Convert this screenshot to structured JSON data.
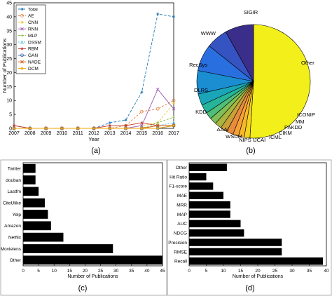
{
  "panels": {
    "a": "(a)",
    "b": "(b)",
    "c": "(c)",
    "d": "(d)"
  },
  "chart_data": [
    {
      "id": "a",
      "type": "line",
      "ylabel": "Number of Publications",
      "xlabel": "Year",
      "x": [
        2007,
        2008,
        2009,
        2010,
        2011,
        2012,
        2013,
        2014,
        2015,
        2016,
        2017
      ],
      "xlim": [
        2007,
        2017
      ],
      "ylim": [
        0,
        45
      ],
      "yticks": [
        0,
        5,
        10,
        15,
        20,
        25,
        30,
        35,
        40,
        45
      ],
      "legend_position": "top-left",
      "grid": false,
      "series": [
        {
          "name": "Total",
          "color": "#1f77b4",
          "marker": "star",
          "dash": "4,2",
          "values": [
            1,
            0,
            0,
            0,
            0,
            0,
            2,
            3,
            13,
            41,
            40
          ]
        },
        {
          "name": "AE",
          "color": "#e07b39",
          "marker": "circle",
          "dash": "3,2",
          "values": [
            0,
            0,
            0,
            0,
            0,
            0,
            0,
            1,
            6,
            7,
            10
          ]
        },
        {
          "name": "CNN",
          "color": "#e8c132",
          "marker": "star",
          "dash": "3,2",
          "values": [
            0,
            0,
            0,
            0,
            0,
            0,
            0,
            0,
            1,
            2,
            9
          ]
        },
        {
          "name": "RNN",
          "color": "#9b59b6",
          "marker": "x",
          "dash": "",
          "values": [
            0,
            0,
            0,
            0,
            0,
            0,
            0,
            0,
            1,
            14,
            7
          ]
        },
        {
          "name": "MLP",
          "color": "#7dbd3c",
          "marker": "plus",
          "dash": "3,2",
          "values": [
            0,
            0,
            0,
            0,
            0,
            0,
            0,
            0,
            0,
            2,
            4
          ]
        },
        {
          "name": "DSSM",
          "color": "#5bc0de",
          "marker": "triangle",
          "dash": "2,2",
          "values": [
            0,
            0,
            0,
            0,
            0,
            0,
            0,
            0,
            0,
            1,
            2
          ]
        },
        {
          "name": "RBM",
          "color": "#c0392b",
          "marker": "star",
          "dash": "",
          "values": [
            1,
            0,
            0,
            0,
            0,
            0,
            1,
            1,
            2,
            1,
            1
          ]
        },
        {
          "name": "GAN",
          "color": "#2c5aa0",
          "marker": "circle",
          "dash": "",
          "values": [
            0,
            0,
            0,
            0,
            0,
            0,
            0,
            0,
            0,
            0,
            1
          ]
        },
        {
          "name": "NADE",
          "color": "#d35400",
          "marker": "x",
          "dash": "",
          "values": [
            0,
            0,
            0,
            0,
            0,
            0,
            0,
            0,
            0,
            1,
            1
          ]
        },
        {
          "name": "DCM",
          "color": "#f0a500",
          "marker": "star",
          "dash": "",
          "values": [
            0,
            0,
            0,
            0,
            0,
            0,
            0,
            0,
            0,
            0,
            1
          ]
        }
      ]
    },
    {
      "id": "b",
      "type": "pie",
      "start_angle_deg": -90,
      "slices": [
        {
          "label": "Other",
          "value": 50,
          "color": "#f3ef1b"
        },
        {
          "label": "ICONIP",
          "value": 1.6,
          "color": "#f4d21d"
        },
        {
          "label": "MM",
          "value": 1.6,
          "color": "#f6b72a"
        },
        {
          "label": "PAKDD",
          "value": 1.6,
          "color": "#f7a036"
        },
        {
          "label": "CIKM",
          "value": 1.9,
          "color": "#e98b3c"
        },
        {
          "label": "ICML",
          "value": 1.9,
          "color": "#c8a13b"
        },
        {
          "label": "IJCAI",
          "value": 1.9,
          "color": "#a8b53f"
        },
        {
          "label": "NIPS",
          "value": 1.9,
          "color": "#7fbe58"
        },
        {
          "label": "WSDM",
          "value": 1.9,
          "color": "#4fbe79"
        },
        {
          "label": "AAAI",
          "value": 2.5,
          "color": "#26b59a"
        },
        {
          "label": "KDD",
          "value": 3.2,
          "color": "#1aa6b8"
        },
        {
          "label": "DLRS",
          "value": 6.5,
          "color": "#1b8ed1"
        },
        {
          "label": "RecSys",
          "value": 7.5,
          "color": "#2a6fe0"
        },
        {
          "label": "WWW",
          "value": 6.0,
          "color": "#3653c2"
        },
        {
          "label": "SIGIR",
          "value": 8.0,
          "color": "#3a2e8a"
        }
      ]
    },
    {
      "id": "c",
      "type": "bar",
      "orientation": "horizontal",
      "xlabel": "Number of Publications",
      "xlim": [
        0,
        45
      ],
      "xticks": [
        0,
        5,
        10,
        15,
        20,
        25,
        30,
        35,
        40,
        45
      ],
      "categories": [
        "Other",
        "Movielens",
        "Netflix",
        "Amazon",
        "Yelp",
        "CiteUlike",
        "Lastfm",
        "douban",
        "Twitter"
      ],
      "values": [
        45,
        29,
        13,
        9,
        8,
        7,
        5,
        4,
        4
      ],
      "bar_color": "#000000"
    },
    {
      "id": "d",
      "type": "bar",
      "orientation": "horizontal",
      "xlabel": "Number of Publications",
      "xlim": [
        0,
        40
      ],
      "xticks": [
        0,
        5,
        10,
        15,
        20,
        25,
        30,
        35,
        40
      ],
      "categories": [
        "Recall",
        "RMSE",
        "Precision",
        "NDCG",
        "AUC",
        "MAP",
        "MRR",
        "MAE",
        "F1-score",
        "Hit Ratio",
        "Other"
      ],
      "values": [
        39,
        27,
        27,
        16,
        15,
        12,
        12,
        10,
        7,
        5,
        11
      ],
      "bar_color": "#000000"
    }
  ]
}
